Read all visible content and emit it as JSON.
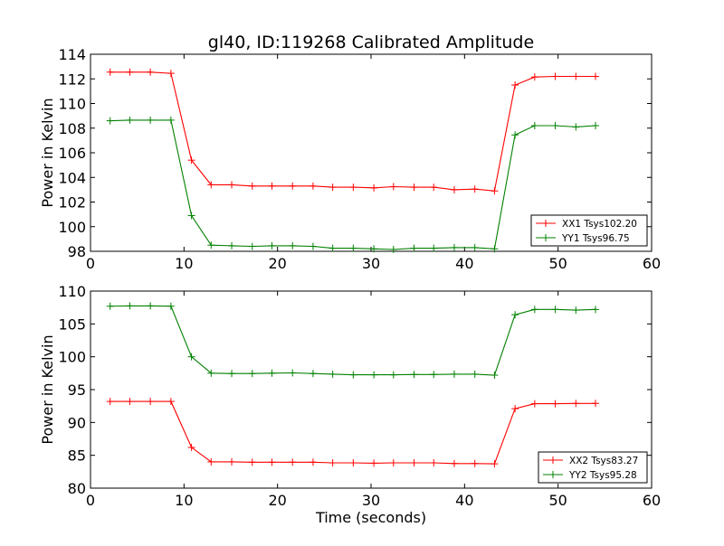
{
  "figure": {
    "title": "gl40, ID:119268 Calibrated Amplitude",
    "xlabel": "Time (seconds)",
    "ylabel": "Power in Kelvin"
  },
  "chart_data": [
    {
      "type": "line",
      "title": "gl40, ID:119268 Calibrated Amplitude",
      "xlabel": "",
      "ylabel": "Power in Kelvin",
      "xlim": [
        0,
        60
      ],
      "ylim": [
        98,
        114
      ],
      "xticks": [
        0,
        10,
        20,
        30,
        40,
        50,
        60
      ],
      "yticks": [
        98,
        100,
        102,
        104,
        106,
        108,
        110,
        112,
        114
      ],
      "grid": false,
      "legend_position": "lower-right",
      "x": [
        2.1,
        4.2,
        6.4,
        8.6,
        10.8,
        12.9,
        15.1,
        17.3,
        19.4,
        21.6,
        23.8,
        25.9,
        28.1,
        30.3,
        32.4,
        34.6,
        36.7,
        38.9,
        41.1,
        43.2,
        45.4,
        47.5,
        49.7,
        51.9,
        54.0
      ],
      "series": [
        {
          "name": "XX1 Tsys102.20",
          "color": "#ff0000",
          "values": [
            112.55,
            112.55,
            112.55,
            112.45,
            105.4,
            103.4,
            103.4,
            103.3,
            103.3,
            103.3,
            103.3,
            103.2,
            103.2,
            103.15,
            103.25,
            103.2,
            103.2,
            103.0,
            103.05,
            102.9,
            111.5,
            112.15,
            112.2,
            112.2,
            112.2
          ]
        },
        {
          "name": "YY1 Tsys96.75",
          "color": "#008000",
          "values": [
            108.6,
            108.65,
            108.65,
            108.65,
            100.9,
            98.5,
            98.45,
            98.4,
            98.45,
            98.45,
            98.4,
            98.25,
            98.25,
            98.2,
            98.15,
            98.25,
            98.25,
            98.3,
            98.3,
            98.2,
            107.45,
            108.2,
            108.2,
            108.1,
            108.2
          ]
        }
      ]
    },
    {
      "type": "line",
      "title": "",
      "xlabel": "Time (seconds)",
      "ylabel": "Power in Kelvin",
      "xlim": [
        0,
        60
      ],
      "ylim": [
        80,
        110
      ],
      "xticks": [
        0,
        10,
        20,
        30,
        40,
        50,
        60
      ],
      "yticks": [
        80,
        85,
        90,
        95,
        100,
        105,
        110
      ],
      "grid": false,
      "legend_position": "lower-right",
      "x": [
        2.1,
        4.2,
        6.4,
        8.6,
        10.8,
        12.9,
        15.1,
        17.3,
        19.4,
        21.6,
        23.8,
        25.9,
        28.1,
        30.3,
        32.4,
        34.6,
        36.7,
        38.9,
        41.1,
        43.2,
        45.4,
        47.5,
        49.7,
        51.9,
        54.0
      ],
      "series": [
        {
          "name": "XX2 Tsys83.27",
          "color": "#ff0000",
          "values": [
            93.2,
            93.2,
            93.2,
            93.2,
            86.2,
            84.0,
            84.0,
            83.95,
            83.95,
            83.95,
            83.95,
            83.85,
            83.85,
            83.8,
            83.85,
            83.85,
            83.85,
            83.75,
            83.75,
            83.7,
            92.1,
            92.85,
            92.85,
            92.9,
            92.9
          ]
        },
        {
          "name": "YY2 Tsys95.28",
          "color": "#008000",
          "values": [
            107.7,
            107.75,
            107.75,
            107.7,
            100.0,
            97.5,
            97.45,
            97.45,
            97.5,
            97.55,
            97.45,
            97.35,
            97.25,
            97.25,
            97.25,
            97.3,
            97.3,
            97.35,
            97.35,
            97.2,
            106.4,
            107.2,
            107.2,
            107.1,
            107.2
          ]
        }
      ]
    }
  ]
}
